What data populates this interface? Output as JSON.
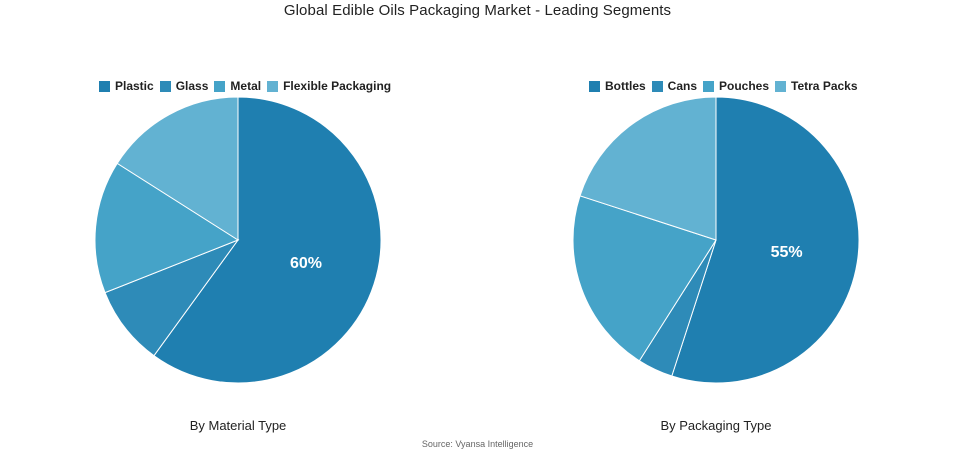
{
  "title": "Global Edible Oils Packaging Market - Leading Segments",
  "source": "Source: Vyansa Intelligence",
  "colors": [
    "#1f7fb0",
    "#2e8bb8",
    "#45a3c8",
    "#62b2d2"
  ],
  "chart_data": [
    {
      "type": "pie",
      "subtitle": "By Material Type",
      "categories": [
        "Plastic",
        "Glass",
        "Metal",
        "Flexible Packaging"
      ],
      "values": [
        60,
        9,
        15,
        16
      ],
      "shown_label": "60%",
      "legend_position": "top"
    },
    {
      "type": "pie",
      "subtitle": "By Packaging Type",
      "categories": [
        "Bottles",
        "Cans",
        "Pouches",
        "Tetra Packs"
      ],
      "values": [
        55,
        4,
        21,
        20
      ],
      "shown_label": "55%",
      "legend_position": "top"
    }
  ]
}
